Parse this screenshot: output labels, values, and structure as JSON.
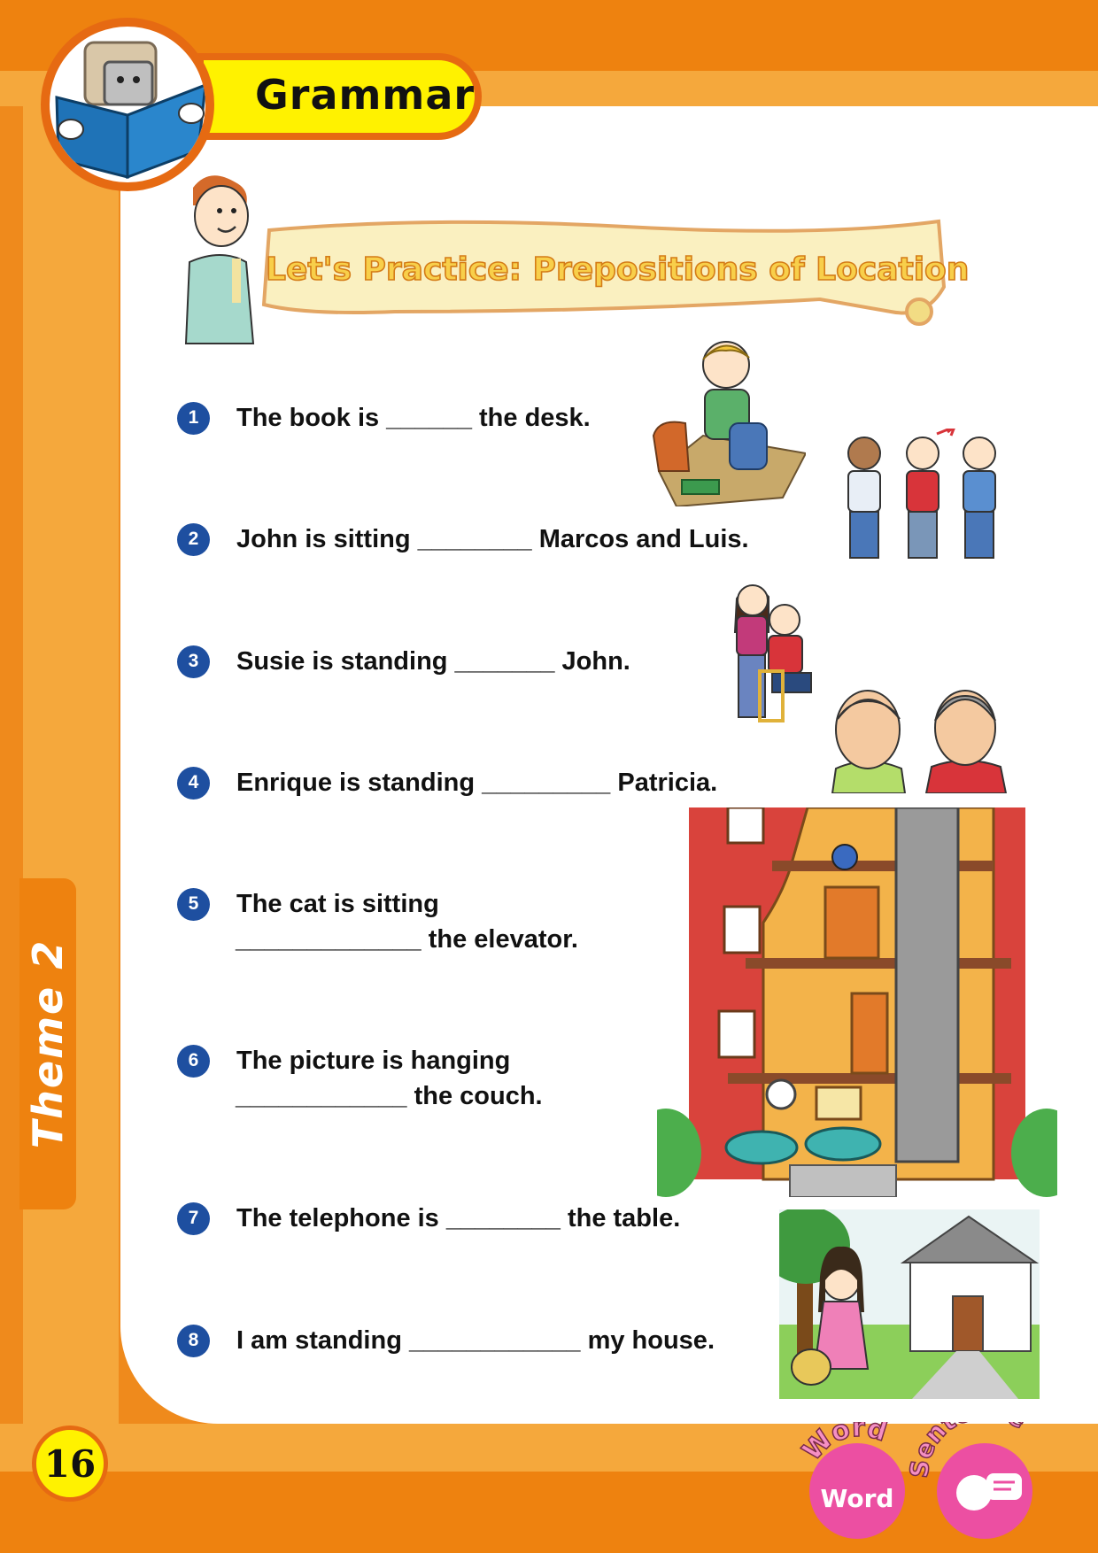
{
  "header": {
    "section_title": "Grammar"
  },
  "banner": {
    "title": "Let's Practice: Prepositions of Location"
  },
  "side_tab": {
    "label": "Theme 2"
  },
  "exercises": [
    {
      "number": "1",
      "text": "The book is ______  the desk."
    },
    {
      "number": "2",
      "text": "John is sitting ________ Marcos and Luis."
    },
    {
      "number": "3",
      "text": "Susie is standing _______ John."
    },
    {
      "number": "4",
      "text": "Enrique is standing _________ Patricia."
    },
    {
      "number": "5",
      "text": "The cat is sitting",
      "text2": "_____________ the elevator."
    },
    {
      "number": "6",
      "text": "The picture is hanging",
      "text2": "____________ the couch."
    },
    {
      "number": "7",
      "text": "The telephone is ________ the table."
    },
    {
      "number": "8",
      "text": "I am standing ____________ my house."
    }
  ],
  "footer": {
    "page_number": "16",
    "badge_word_top": "Word",
    "badge_word_inner": "Word",
    "badge_sentence_top": "Sentence"
  },
  "colors": {
    "orange_dark": "#ee820f",
    "orange_light": "#f5a83c",
    "blue_number": "#1e4fa0",
    "yellow": "#fff200",
    "badge_pink": "#ec4fa2"
  }
}
